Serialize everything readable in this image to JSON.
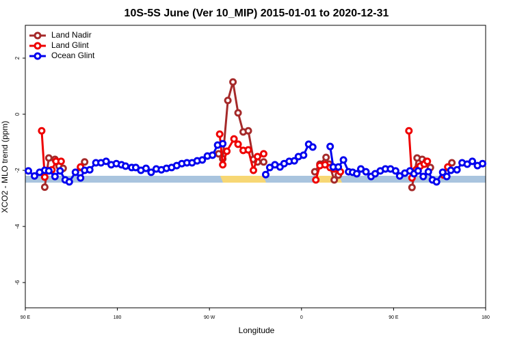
{
  "chart_data": {
    "type": "line",
    "title": "10S-5S June (Ver 10_MIP)   2015-01-01 to 2020-12-31",
    "xlabel": "Longitude",
    "ylabel": "XCO2 - MLO trend (ppm)",
    "xlim": [
      90,
      540
    ],
    "ylim": [
      -6.9,
      3.17
    ],
    "xticks": [
      {
        "value": 90,
        "label": "90 E"
      },
      {
        "value": 180,
        "label": "180"
      },
      {
        "value": 270,
        "label": "90 W"
      },
      {
        "value": 360,
        "label": "0"
      },
      {
        "value": 450,
        "label": "90 E"
      },
      {
        "value": 540,
        "label": "180"
      }
    ],
    "yticks": [
      2,
      0,
      -2,
      -4,
      -6
    ],
    "legend": "top-left",
    "series": [
      {
        "name": "Land Nadir",
        "color": "#a52a2a",
        "x": [
          109,
          113,
          119,
          123,
          127,
          null,
          144,
          148,
          null,
          279,
          283,
          288,
          293,
          298,
          303,
          308,
          313,
          317,
          323,
          null,
          373,
          378,
          384,
          387,
          392,
          396,
          null,
          468,
          473,
          478,
          482,
          486,
          null,
          507
        ],
        "values": [
          -2.6,
          -1.56,
          -1.61,
          -1.85,
          -1.93,
          null,
          -1.9,
          -1.7,
          null,
          -1.41,
          -1.59,
          0.49,
          1.15,
          0.05,
          -0.63,
          -0.59,
          -1.61,
          -1.7,
          -1.7,
          null,
          -2.05,
          -1.78,
          -1.54,
          -1.78,
          -2.34,
          -2.17,
          null,
          -2.61,
          -1.56,
          -1.61,
          -1.68,
          -1.9,
          null,
          -1.73
        ]
      },
      {
        "name": "Land Glint",
        "color": "#ee0000",
        "x": [
          106,
          109,
          112,
          116,
          120,
          125,
          null,
          144,
          null,
          280,
          283,
          287,
          294,
          298,
          303,
          308,
          313,
          317,
          323,
          null,
          374,
          378,
          383,
          388,
          392,
          398,
          null,
          465,
          468,
          472,
          476,
          480,
          483,
          null,
          499,
          503
        ],
        "values": [
          -0.59,
          -2.24,
          -2.0,
          -1.98,
          -1.68,
          -1.68,
          null,
          -1.88,
          null,
          -0.71,
          -1.8,
          -1.32,
          -0.88,
          -1.07,
          -1.29,
          -1.27,
          -2.0,
          -1.51,
          -1.41,
          null,
          -2.34,
          -1.83,
          -1.8,
          -1.9,
          -1.95,
          -2.05,
          null,
          -0.59,
          -2.27,
          -1.98,
          -1.85,
          -1.78,
          -1.68,
          null,
          -2.17,
          -1.88
        ]
      },
      {
        "name": "Ocean Glint",
        "color": "#0000ee",
        "x": [
          93,
          99,
          104,
          109,
          113,
          119,
          124,
          129,
          133,
          139,
          144,
          148,
          153,
          159,
          164,
          169,
          174,
          179,
          184,
          188,
          194,
          198,
          203,
          208,
          213,
          218,
          223,
          228,
          233,
          238,
          243,
          248,
          253,
          258,
          263,
          268,
          273,
          278,
          283,
          null,
          325,
          329,
          334,
          339,
          343,
          348,
          353,
          357,
          362,
          367,
          371,
          null,
          388,
          391,
          396,
          401,
          406,
          410,
          414,
          418,
          423,
          428,
          432,
          437,
          442,
          447,
          452,
          456,
          461,
          466,
          470,
          474,
          479,
          484,
          488,
          492,
          498,
          502,
          506,
          512,
          517,
          522,
          527,
          532,
          537
        ],
        "values": [
          -2.02,
          -2.2,
          -2.07,
          -2.0,
          -2.02,
          -2.22,
          -2.02,
          -2.34,
          -2.41,
          -2.07,
          -2.27,
          -2.0,
          -1.98,
          -1.73,
          -1.73,
          -1.68,
          -1.8,
          -1.76,
          -1.8,
          -1.85,
          -1.9,
          -1.9,
          -2.0,
          -1.93,
          -2.07,
          -1.95,
          -1.98,
          -1.93,
          -1.9,
          -1.83,
          -1.76,
          -1.73,
          -1.73,
          -1.66,
          -1.63,
          -1.49,
          -1.46,
          -1.1,
          -1.05,
          null,
          -2.15,
          -1.9,
          -1.8,
          -1.88,
          -1.76,
          -1.68,
          -1.66,
          -1.51,
          -1.46,
          -1.07,
          -1.17,
          null,
          -1.15,
          -1.88,
          -1.88,
          -1.63,
          -2.05,
          -2.07,
          -2.12,
          -1.95,
          -2.05,
          -2.22,
          -2.12,
          -2.02,
          -1.95,
          -1.95,
          -2.02,
          -2.2,
          -2.1,
          -2.02,
          -2.12,
          -2.02,
          -2.22,
          -2.05,
          -2.34,
          -2.41,
          -2.07,
          -2.22,
          -2.0,
          -1.98,
          -1.73,
          -1.78,
          -1.68,
          -1.83,
          -1.76
        ]
      }
    ]
  }
}
